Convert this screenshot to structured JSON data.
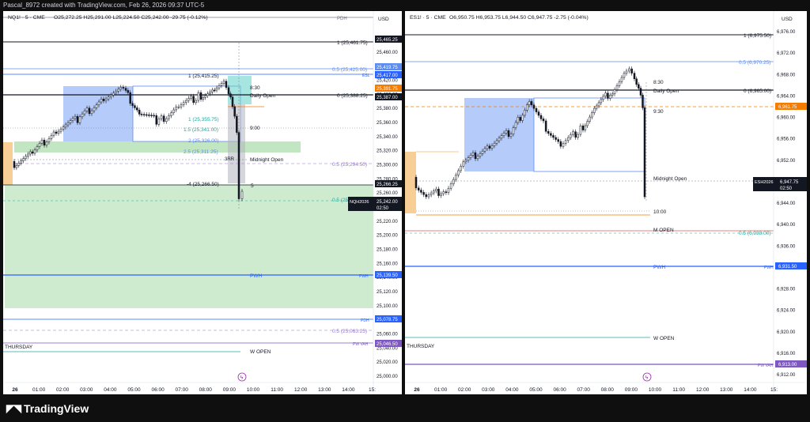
{
  "header": {
    "credit": "Pascal_8972 created with TradingView.com, Feb 26, 2026 09:37 UTC-5"
  },
  "footer": {
    "brand": "TradingView",
    "logo_icon": "tradingview-logo-icon"
  },
  "colors": {
    "up": "#131722",
    "down": "#131722",
    "blue_zone": "#5b8cf2",
    "green_zone": "#a8dba8",
    "orange_zone": "#f5b96b",
    "gray_zone": "#b2b5be",
    "teal": "#5fd0c8",
    "purple": "#7e57c2"
  },
  "panels": [
    {
      "symbol": "NQ1! · 5 · CME",
      "ohlc": "O25,272.25  H25,291.00  L25,224.50  C25,242.00  -29.75 (-0.12%)",
      "currency": "USD",
      "ymin": 24990,
      "ymax": 25490,
      "yticks": [
        "25,480.00",
        "25,460.00",
        "25,440.00",
        "25,420.00",
        "25,400.00",
        "25,380.00",
        "25,360.00",
        "25,340.00",
        "25,320.00",
        "25,300.00",
        "25,280.00",
        "25,260.00",
        "25,240.00",
        "25,220.00",
        "25,200.00",
        "25,180.00",
        "25,160.00",
        "25,140.00",
        "25,120.00",
        "25,100.00",
        "25,080.00",
        "25,060.00",
        "25,040.00",
        "25,020.00",
        "25,000.00"
      ],
      "xticks": [
        "26",
        "01:00",
        "02:00",
        "03:00",
        "04:00",
        "05:00",
        "06:00",
        "07:00",
        "08:00",
        "09:00",
        "10:00",
        "11:00",
        "12:00",
        "13:00",
        "14:00",
        "15:"
      ],
      "last_price": {
        "value": "25,242.00",
        "symbol": "NQH2026",
        "countdown": "02:50"
      },
      "levels": [
        {
          "label": "PDH",
          "price": "25,465.25",
          "color": "#131722"
        },
        {
          "label": "1 (25,461.75)",
          "price": "",
          "color": "#131722"
        },
        {
          "label": "0.5 (25,425.00)",
          "price": "25,419.75",
          "color": "#5b8cf2"
        },
        {
          "label": "ESL",
          "price": "25,417.00",
          "color": "#2962ff"
        },
        {
          "label": "0 (25,388.25)",
          "price": "25,387.00",
          "color": "#131722"
        },
        {
          "label": "Daily Open",
          "price": "25,391.75",
          "color": "#f57c00"
        },
        {
          "label": "0.5 (25,294.50)",
          "price": "",
          "color": "#9575cd"
        },
        {
          "label": "Midnight Open",
          "price": "",
          "color": "#787b86"
        },
        {
          "label": "PWH",
          "price": "25,139.50",
          "color": "#2962ff"
        },
        {
          "label": "PDH",
          "price": "25,078.75",
          "color": "#2962ff"
        },
        {
          "label": "0.5 (25,063.25)",
          "price": "",
          "color": "#9575cd"
        },
        {
          "label": "PW VAH",
          "price": "25,046.50",
          "color": "#7e57c2"
        },
        {
          "label": "W OPEN",
          "price": "",
          "color": "#26a69a"
        }
      ],
      "annotations": [
        "1 (25,415.25)",
        "8:30",
        "1 (25,355.75)",
        "1.5 (25,341.00)",
        "9:00",
        "2 (25,326.00)",
        "2.5 (25,311.25)",
        "3RR",
        "-4 (25,266.50)",
        "0.5 (25,",
        "5",
        "25,266.25",
        "THURSDAY"
      ]
    },
    {
      "symbol": "ES1! · 5 · CME",
      "ohlc": "O6,950.75  H6,953.75  L6,944.50  C6,947.75  -2.75 (-0.04%)",
      "currency": "USD",
      "ymin": 6911,
      "ymax": 6980,
      "yticks": [
        "6,976.00",
        "6,972.00",
        "6,968.00",
        "6,964.00",
        "6,960.00",
        "6,956.00",
        "6,952.00",
        "6,948.00",
        "6,944.00",
        "6,940.00",
        "6,936.00",
        "6,932.00",
        "6,928.00",
        "6,924.00",
        "6,920.00",
        "6,916.00",
        "6,912.00"
      ],
      "xticks": [
        "26",
        "01:00",
        "02:00",
        "03:00",
        "04:00",
        "05:00",
        "06:00",
        "07:00",
        "08:00",
        "09:00",
        "10:00",
        "11:00",
        "12:00",
        "13:00",
        "14:00",
        "15:"
      ],
      "last_price": {
        "value": "6,947.75",
        "symbol": "ESH2026",
        "countdown": "02:50"
      },
      "levels": [
        {
          "label": "1 (6,975.50)",
          "price": "",
          "color": "#131722"
        },
        {
          "label": "0.5 (6,970.25)",
          "price": "",
          "color": "#5b8cf2"
        },
        {
          "label": "0 (6,965.00)",
          "price": "",
          "color": "#131722"
        },
        {
          "label": "Daily Open",
          "price": "6,961.75",
          "color": "#f57c00"
        },
        {
          "label": "Midnight Open",
          "price": "",
          "color": "#787b86"
        },
        {
          "label": "M OPEN",
          "price": "",
          "color": "#ef5350"
        },
        {
          "label": "0.5 (6,938.00)",
          "price": "",
          "color": "#26a69a"
        },
        {
          "label": "PWH",
          "price": "6,931.50",
          "color": "#2962ff"
        },
        {
          "label": "W OPEN",
          "price": "",
          "color": "#26a69a"
        },
        {
          "label": "PW VAH",
          "price": "6,913.00",
          "color": "#7e57c2"
        }
      ],
      "annotations": [
        "8:30",
        "9:30",
        "10:00",
        "THURSDAY"
      ]
    }
  ]
}
